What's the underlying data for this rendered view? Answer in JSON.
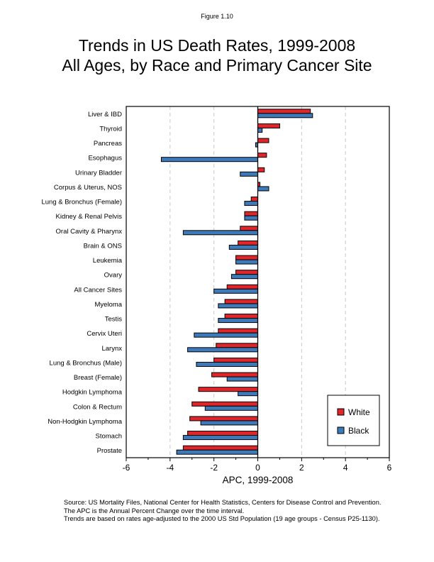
{
  "figure_label": "Figure 1.10",
  "title_lines": [
    "Trends in US Death Rates, 1999-2008",
    "All Ages, by Race and Primary Cancer Site"
  ],
  "footnotes": [
    "Source: US Mortality Files, National Center for Health Statistics, Centers for Disease Control and Prevention.",
    "The APC is the Annual Percent Change over the time interval.",
    "Trends are based on rates age-adjusted to the 2000 US Std Population (19 age groups - Census P25-1130)."
  ],
  "chart_data": {
    "type": "bar",
    "orientation": "horizontal",
    "title": "Trends in US Death Rates, 1999-2008 All Ages, by Race and Primary Cancer Site",
    "xlabel": "APC, 1999-2008",
    "ylabel": "",
    "xlim": [
      -6,
      6
    ],
    "xticks": [
      -6,
      -4,
      -2,
      0,
      2,
      4,
      6
    ],
    "xtick_labels": [
      "-6",
      "-4",
      "-2",
      "0",
      "2",
      "4",
      "6"
    ],
    "minor_xticks": [
      -5,
      -3,
      -1,
      1,
      3,
      5
    ],
    "grid": "vertical dashed at major ticks",
    "legend_position": "bottom-right",
    "categories": [
      "Liver & IBD",
      "Thyroid",
      "Pancreas",
      "Esophagus",
      "Urinary Bladder",
      "Corpus & Uterus, NOS",
      "Lung & Bronchus (Female)",
      "Kidney & Renal Pelvis",
      "Oral Cavity & Pharynx",
      "Brain & ONS",
      "Leukemia",
      "Ovary",
      "All Cancer Sites",
      "Myeloma",
      "Testis",
      "Cervix Uteri",
      "Larynx",
      "Lung & Bronchus (Male)",
      "Breast (Female)",
      "Hodgkin Lymphoma",
      "Colon & Rectum",
      "Non-Hodgkin Lymphoma",
      "Stomach",
      "Prostate"
    ],
    "series": [
      {
        "name": "White",
        "color": "#E0252B",
        "values": [
          2.4,
          1.0,
          0.5,
          0.4,
          0.3,
          0.1,
          -0.3,
          -0.6,
          -0.8,
          -0.9,
          -1.0,
          -1.0,
          -1.4,
          -1.5,
          -1.5,
          -1.8,
          -1.9,
          -2.0,
          -2.1,
          -2.7,
          -3.0,
          -3.1,
          -3.2,
          -3.4
        ]
      },
      {
        "name": "Black",
        "color": "#3D7AB9",
        "values": [
          2.5,
          0.2,
          -0.1,
          -4.4,
          -0.8,
          0.5,
          -0.6,
          -0.6,
          -3.4,
          -1.3,
          -1.0,
          -1.2,
          -2.0,
          -1.8,
          -1.8,
          -2.9,
          -3.2,
          -2.8,
          -1.4,
          -0.9,
          -2.4,
          -2.6,
          -3.4,
          -3.7
        ]
      }
    ]
  }
}
